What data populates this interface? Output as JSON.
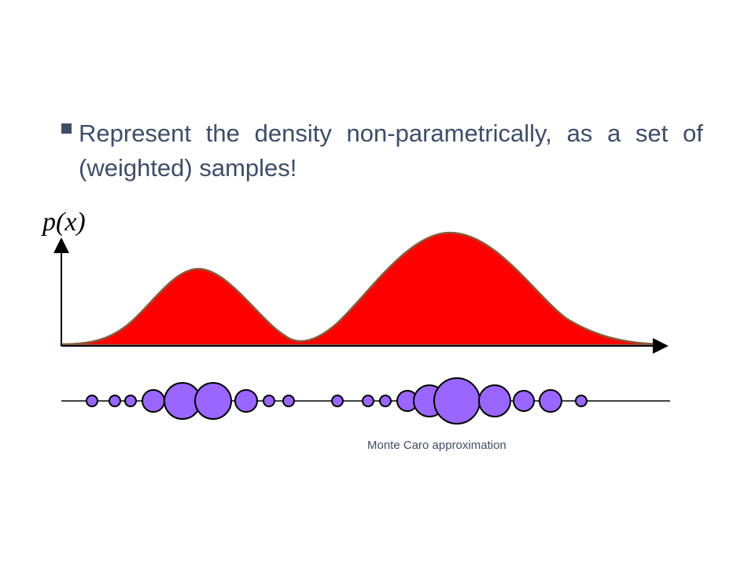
{
  "bullet": {
    "text": "Represent the density non-parametrically, as a set of (weighted) samples!"
  },
  "figure": {
    "ylabel": "p(x)",
    "caption": "Monte Caro approximation",
    "colors": {
      "density_fill": "#ff0000",
      "density_stroke": "#8a5a3a",
      "particle_fill": "#9966ff",
      "particle_stroke": "#000000"
    },
    "particle_weights": [
      0.35,
      0.35,
      0.35,
      0.65,
      1.0,
      1.0,
      0.65,
      0.35,
      0.35,
      0.35,
      0.35,
      0.35,
      0.6,
      0.9,
      1.25,
      0.9,
      0.6,
      0.65,
      0.35
    ]
  }
}
